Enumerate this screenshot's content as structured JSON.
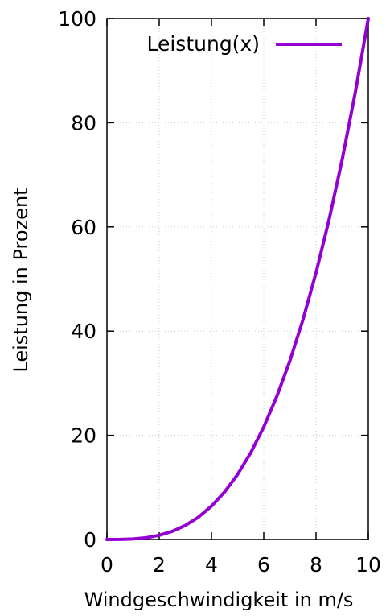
{
  "chart_data": {
    "type": "line",
    "xlabel": "Windgeschwindigkeit in m/s",
    "ylabel": "Leistung in Prozent",
    "xlim": [
      0,
      10
    ],
    "ylim": [
      0,
      100
    ],
    "x_ticks": [
      0,
      2,
      4,
      6,
      8,
      10
    ],
    "y_ticks": [
      0,
      20,
      40,
      60,
      80,
      100
    ],
    "grid": true,
    "legend": "top-right",
    "series": [
      {
        "name": "Leistung(x)",
        "color": "#9400d3",
        "x": [
          0,
          0.5,
          1,
          1.5,
          2,
          2.5,
          3,
          3.5,
          4,
          4.5,
          5,
          5.5,
          6,
          6.5,
          7,
          7.5,
          8,
          8.5,
          9,
          9.5,
          10
        ],
        "y": [
          0,
          0.0125,
          0.1,
          0.3375,
          0.8,
          1.5625,
          2.7,
          4.2875,
          6.4,
          9.1125,
          12.5,
          16.6375,
          21.6,
          27.4625,
          34.3,
          42.1875,
          51.2,
          61.4125,
          72.9,
          85.7375,
          100
        ]
      }
    ]
  }
}
